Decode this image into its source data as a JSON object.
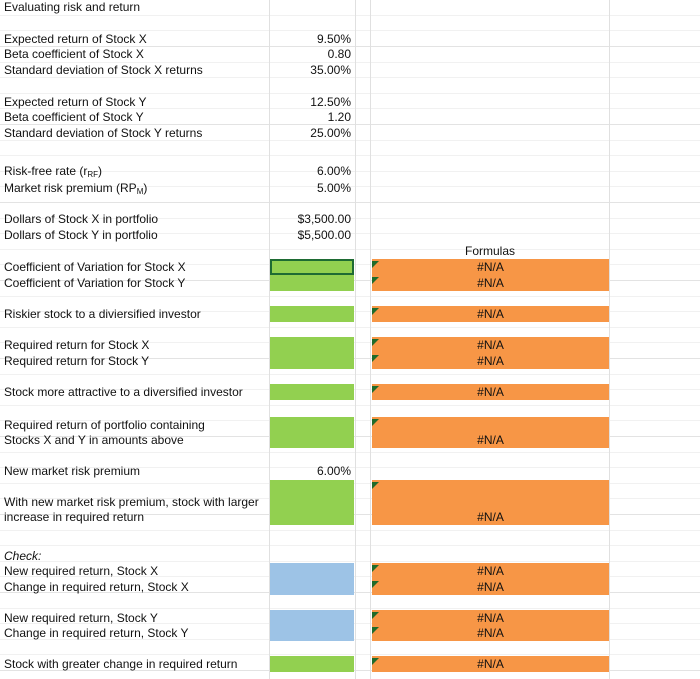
{
  "title": "Evaluating risk and return",
  "formulas_header": "Formulas",
  "rows": [
    {
      "label": [
        "Expected return of Stock X"
      ],
      "value": "9.50%"
    },
    {
      "label": [
        "Beta coefficient of Stock X"
      ],
      "value": "0.80"
    },
    {
      "label": [
        "Standard deviation of Stock X returns"
      ],
      "value": "35.00%"
    },
    {
      "label": [
        "Expected return of Stock Y"
      ],
      "value": "12.50%"
    },
    {
      "label": [
        "Beta coefficient of Stock Y"
      ],
      "value": "1.20"
    },
    {
      "label": [
        "Standard deviation of Stock Y returns"
      ],
      "value": "25.00%"
    },
    {
      "label": [
        "Risk-free rate (r"
      ],
      "label_sub": "RF",
      "label_end": ")",
      "value": "6.00%"
    },
    {
      "label": [
        "Market risk premium (RP"
      ],
      "label_sub": "M",
      "label_end": ")",
      "value": "5.00%"
    },
    {
      "label": [
        "Dollars of Stock X in portfolio"
      ],
      "value": "$3,500.00"
    },
    {
      "label": [
        "Dollars of Stock Y in portfolio"
      ],
      "value": "$5,500.00"
    },
    {
      "label": [
        "Coefficient of Variation for Stock X"
      ],
      "answer": "#N/A"
    },
    {
      "label": [
        "Coefficient of Variation for Stock Y"
      ],
      "answer": "#N/A"
    },
    {
      "label": [
        "Riskier stock to a diviersified investor"
      ],
      "answer": "#N/A"
    },
    {
      "label": [
        "Required return for Stock X"
      ],
      "answer": "#N/A"
    },
    {
      "label": [
        "Required return for Stock Y"
      ],
      "answer": "#N/A"
    },
    {
      "label": [
        "Stock more attractive to a diversified investor"
      ],
      "answer": "#N/A"
    },
    {
      "label": [
        "Required return of portfolio containing",
        "Stocks X and Y in amounts above"
      ],
      "answer": "#N/A"
    },
    {
      "label": [
        "New market risk premium"
      ],
      "value": "6.00%"
    },
    {
      "label": [
        "With new market risk premium, stock with larger",
        "increase in required return"
      ],
      "answer": "#N/A"
    },
    {
      "label": [
        "Check:",
        "New required return, Stock X"
      ],
      "answer": "#N/A"
    },
    {
      "label": [
        "Change in required return, Stock X"
      ],
      "answer": "#N/A"
    },
    {
      "label": [
        "New required return, Stock Y"
      ],
      "answer": "#N/A"
    },
    {
      "label": [
        "Change in required return, Stock Y"
      ],
      "answer": "#N/A"
    },
    {
      "label": [
        "Stock with greater change in required return"
      ],
      "answer": "#N/A"
    }
  ]
}
